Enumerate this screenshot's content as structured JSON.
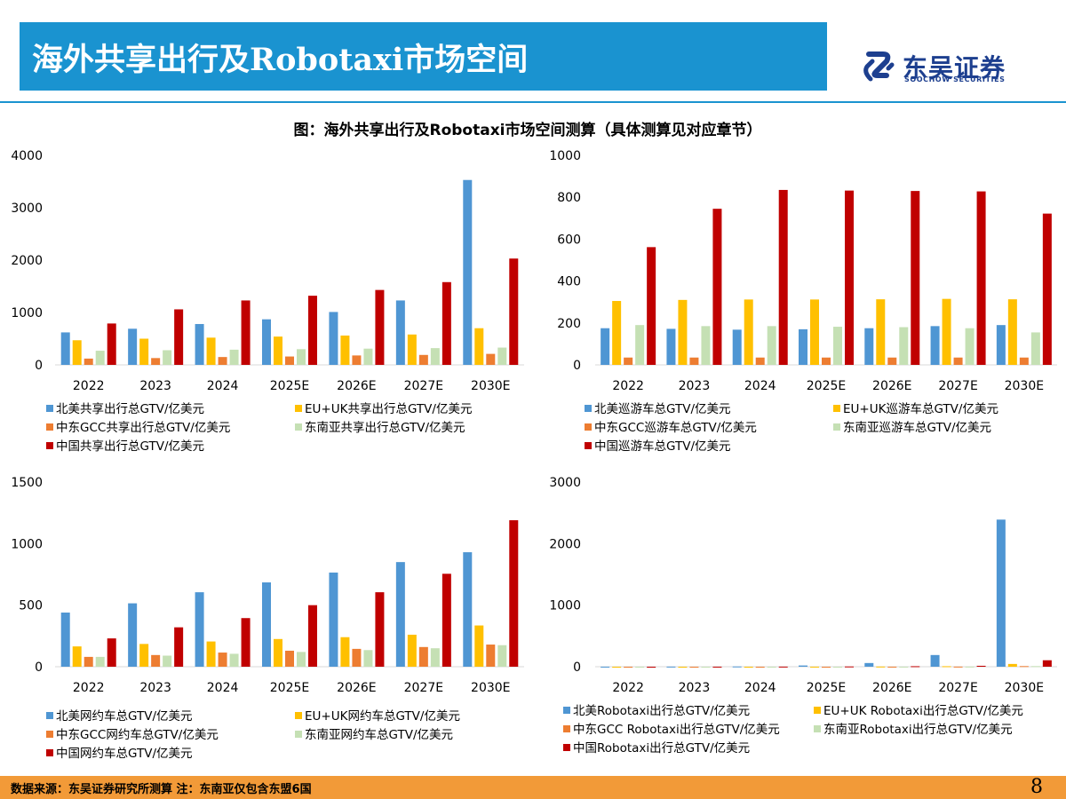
{
  "header": {
    "title": "海外共享出行及Robotaxi市场空间",
    "logo_name": "东吴证券",
    "logo_sub": "SOOCHOW SECURITIES"
  },
  "figure_title": "图：海外共享出行及Robotaxi市场空间测算（具体测算见对应章节）",
  "colors": {
    "title_bar": "#1a93d0",
    "footer_bar": "#f29a38",
    "series": [
      "#4f96d3",
      "#ffc000",
      "#ed7d31",
      "#c5e0b4",
      "#c00000"
    ]
  },
  "chart_data": [
    {
      "type": "bar",
      "categories": [
        "2022",
        "2023",
        "2024",
        "2025E",
        "2026E",
        "2027E",
        "2030E"
      ],
      "ylim": [
        0,
        4000
      ],
      "yticks": [
        "0",
        "1000",
        "2000",
        "3000",
        "4000"
      ],
      "tick_values": [
        0,
        1000,
        2000,
        3000,
        4000
      ],
      "legend_position": "bottom",
      "series": [
        {
          "name": "北美共享出行总GTV/亿美元",
          "values": [
            620,
            690,
            780,
            870,
            1010,
            1230,
            3530
          ]
        },
        {
          "name": "EU+UK共享出行总GTV/亿美元",
          "values": [
            470,
            500,
            520,
            540,
            560,
            580,
            700
          ]
        },
        {
          "name": "中东GCC共享出行总GTV/亿美元",
          "values": [
            120,
            130,
            150,
            160,
            180,
            190,
            210
          ]
        },
        {
          "name": "东南亚共享出行总GTV/亿美元",
          "values": [
            270,
            280,
            290,
            300,
            310,
            320,
            330
          ]
        },
        {
          "name": "中国共享出行总GTV/亿美元",
          "values": [
            790,
            1060,
            1230,
            1320,
            1430,
            1580,
            2030
          ]
        }
      ]
    },
    {
      "type": "bar",
      "categories": [
        "2022",
        "2023",
        "2024",
        "2025E",
        "2026E",
        "2027E",
        "2030E"
      ],
      "ylim": [
        0,
        1000
      ],
      "yticks": [
        "0",
        "200",
        "400",
        "600",
        "800",
        "1000"
      ],
      "tick_values": [
        0,
        200,
        400,
        600,
        800,
        1000
      ],
      "legend_position": "bottom",
      "series": [
        {
          "name": "北美巡游车总GTV/亿美元",
          "values": [
            175,
            172,
            168,
            170,
            175,
            185,
            190
          ]
        },
        {
          "name": "EU+UK巡游车总GTV/亿美元",
          "values": [
            305,
            310,
            312,
            312,
            313,
            315,
            313
          ]
        },
        {
          "name": "中东GCC巡游车总GTV/亿美元",
          "values": [
            35,
            35,
            35,
            35,
            35,
            35,
            35
          ]
        },
        {
          "name": "东南亚巡游车总GTV/亿美元",
          "values": [
            190,
            185,
            185,
            182,
            180,
            175,
            155
          ]
        },
        {
          "name": "中国巡游车总GTV/亿美元",
          "values": [
            562,
            745,
            835,
            832,
            830,
            828,
            722
          ]
        }
      ]
    },
    {
      "type": "bar",
      "categories": [
        "2022",
        "2023",
        "2024",
        "2025E",
        "2026E",
        "2027E",
        "2030E"
      ],
      "ylim": [
        0,
        1500
      ],
      "yticks": [
        "0",
        "500",
        "1000",
        "1500"
      ],
      "tick_values": [
        0,
        500,
        1000,
        1500
      ],
      "legend_position": "bottom",
      "series": [
        {
          "name": "北美网约车总GTV/亿美元",
          "values": [
            440,
            515,
            605,
            685,
            765,
            850,
            930
          ]
        },
        {
          "name": "EU+UK网约车总GTV/亿美元",
          "values": [
            165,
            185,
            205,
            225,
            240,
            260,
            335
          ]
        },
        {
          "name": "中东GCC网约车总GTV/亿美元",
          "values": [
            80,
            95,
            115,
            130,
            145,
            160,
            180
          ]
        },
        {
          "name": "东南亚网约车总GTV/亿美元",
          "values": [
            80,
            90,
            105,
            120,
            135,
            150,
            175
          ]
        },
        {
          "name": "中国网约车总GTV/亿美元",
          "values": [
            230,
            320,
            395,
            500,
            605,
            755,
            1190
          ]
        }
      ]
    },
    {
      "type": "bar",
      "categories": [
        "2022",
        "2023",
        "2024",
        "2025E",
        "2026E",
        "2027E",
        "2030E"
      ],
      "ylim": [
        0,
        3000
      ],
      "yticks": [
        "0",
        "1000",
        "2000",
        "3000"
      ],
      "tick_values": [
        0,
        1000,
        2000,
        3000
      ],
      "legend_position": "bottom",
      "series": [
        {
          "name": "北美Robotaxi出行总GTV/亿美元",
          "values": [
            1,
            2,
            4,
            20,
            60,
            190,
            2390
          ]
        },
        {
          "name": "EU+UK Robotaxi出行总GTV/亿美元",
          "values": [
            0,
            0,
            0,
            1,
            3,
            8,
            45
          ]
        },
        {
          "name": "中东GCC Robotaxi出行总GTV/亿美元",
          "values": [
            0,
            0,
            0,
            0,
            1,
            2,
            10
          ]
        },
        {
          "name": "东南亚Robotaxi出行总GTV/亿美元",
          "values": [
            0,
            0,
            0,
            0,
            1,
            2,
            10
          ]
        },
        {
          "name": "中国Robotaxi出行总GTV/亿美元",
          "values": [
            0,
            1,
            2,
            4,
            8,
            15,
            105
          ]
        }
      ]
    }
  ],
  "footer": {
    "note": "数据来源：东吴证券研究所测算   注：东南亚仅包含东盟6国",
    "page_number": "8"
  }
}
